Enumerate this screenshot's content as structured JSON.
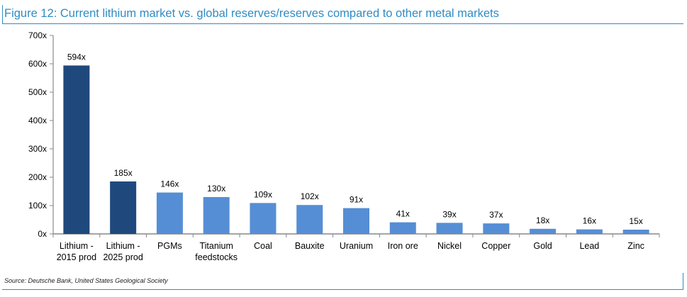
{
  "figure": {
    "title": "Figure 12: Current lithium market vs. global reserves/reserves compared to other metal markets",
    "source": "Source: Deutsche Bank, United States Geological Society"
  },
  "colors": {
    "accent": "#2f8cc4",
    "dark_bar": "#1f497d",
    "light_bar": "#558ed5"
  },
  "chart_data": {
    "type": "bar",
    "title": "",
    "xlabel": "",
    "ylabel": "",
    "ylim": [
      0,
      700
    ],
    "yticks": [
      0,
      100,
      200,
      300,
      400,
      500,
      600,
      700
    ],
    "ytick_labels": [
      "0x",
      "100x",
      "200x",
      "300x",
      "400x",
      "500x",
      "600x",
      "700x"
    ],
    "categories": [
      [
        "Lithium -",
        "2015 prod"
      ],
      [
        "Lithium -",
        "2025 prod"
      ],
      [
        "PGMs"
      ],
      [
        "Titanium",
        "feedstocks"
      ],
      [
        "Coal"
      ],
      [
        "Bauxite"
      ],
      [
        "Uranium"
      ],
      [
        "Iron ore"
      ],
      [
        "Nickel"
      ],
      [
        "Copper"
      ],
      [
        "Gold"
      ],
      [
        "Lead"
      ],
      [
        "Zinc"
      ]
    ],
    "values": [
      594,
      185,
      146,
      130,
      109,
      102,
      91,
      41,
      39,
      37,
      18,
      16,
      15
    ],
    "data_labels": [
      "594x",
      "185x",
      "146x",
      "130x",
      "109x",
      "102x",
      "91x",
      "41x",
      "39x",
      "37x",
      "18x",
      "16x",
      "15x"
    ],
    "bar_colors": [
      "#1f497d",
      "#1f497d",
      "#558ed5",
      "#558ed5",
      "#558ed5",
      "#558ed5",
      "#558ed5",
      "#558ed5",
      "#558ed5",
      "#558ed5",
      "#558ed5",
      "#558ed5",
      "#558ed5"
    ],
    "grid": false,
    "legend": "none"
  }
}
